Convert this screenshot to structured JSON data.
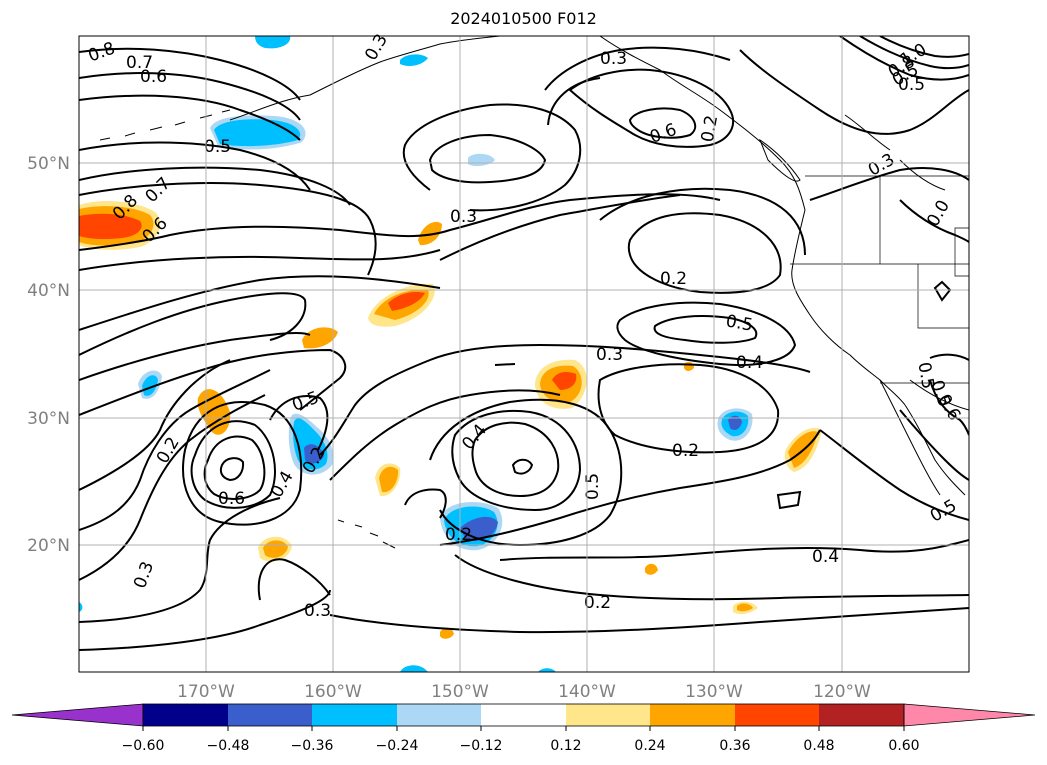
{
  "title": "2024010500 F012",
  "map": {
    "projection": "equirectangular",
    "lon_range": [
      -180,
      -110
    ],
    "lat_range": [
      10,
      60
    ],
    "lat_labels": [
      "20°N",
      "30°N",
      "40°N",
      "50°N"
    ],
    "lon_labels": [
      "170°W",
      "160°W",
      "150°W",
      "140°W",
      "130°W",
      "120°W"
    ],
    "grid_lons": [
      -170,
      -160,
      -150,
      -140,
      -130,
      -120
    ],
    "grid_lats": [
      20,
      30,
      40,
      50
    ],
    "contour_labels": [
      "0.8",
      "0.7",
      "0.6",
      "0.5",
      "0.3",
      "0.3",
      "0.6",
      "0.7",
      "0.8",
      "0.6",
      "0.5",
      "0.3",
      "0.2",
      "0.5",
      "0.3",
      "0.4",
      "0.5",
      "0.2",
      "0.2",
      "0.6",
      "0.4",
      "0.2",
      "0.4",
      "0.5",
      "0.2",
      "0.3",
      "0.4",
      "0.2",
      "0.3",
      "0.2",
      "0.5",
      "0.3",
      "0.8",
      "0.5",
      "1.0",
      "0.0",
      "0.6",
      "0.5",
      "0.5"
    ]
  },
  "colorbar": {
    "ticks": [
      "−0.60",
      "−0.48",
      "−0.36",
      "−0.24",
      "−0.12",
      "0.12",
      "0.24",
      "0.36",
      "0.48",
      "0.60"
    ],
    "colors": [
      "#9932cc",
      "#00008b",
      "#3a5fcd",
      "#00bfff",
      "#add8f5",
      "#ffffff",
      "#ffe68a",
      "#ffa500",
      "#ff4500",
      "#b22222",
      "#ff88aa"
    ]
  },
  "colors": {
    "neg_light": "#add8f5",
    "neg_mid": "#00bfff",
    "neg_dark": "#3a5fcd",
    "neg_darker": "#00008b",
    "pos_light": "#ffe68a",
    "pos_mid": "#ffa500",
    "pos_dark": "#ff4500",
    "grid": "#b0b0b0",
    "axis_text": "#808080"
  }
}
